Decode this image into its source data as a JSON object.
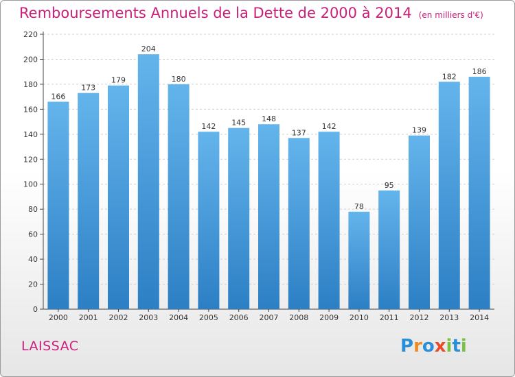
{
  "title": "Remboursements Annuels de la Dette de 2000 à 2014",
  "subtitle": "(en milliers d'€)",
  "commune": "LAISSAC",
  "logo": {
    "text": "Proxiti",
    "letters": [
      "P",
      "r",
      "o",
      "x",
      "i",
      "t",
      "i"
    ],
    "colors": [
      "#2a8fd6",
      "#f18b1f",
      "#2a8fd6",
      "#e94b2a",
      "#7ac142",
      "#2a8fd6",
      "#7ac142"
    ]
  },
  "colors": {
    "accent": "#c8207a",
    "bar_top": "#64b4ec",
    "bar_bottom": "#2c7fc4",
    "grid": "#cfcfcf"
  },
  "chart_data": {
    "type": "bar",
    "categories": [
      "2000",
      "2001",
      "2002",
      "2003",
      "2004",
      "2005",
      "2006",
      "2007",
      "2008",
      "2009",
      "2010",
      "2011",
      "2012",
      "2013",
      "2014"
    ],
    "values": [
      166,
      173,
      179,
      204,
      180,
      142,
      145,
      148,
      137,
      142,
      78,
      95,
      139,
      182,
      186
    ],
    "title": "Remboursements Annuels de la Dette de 2000 à 2014",
    "xlabel": "",
    "ylabel": "",
    "ylim": [
      0,
      220
    ],
    "yticks": [
      0,
      20,
      40,
      60,
      80,
      100,
      120,
      140,
      160,
      180,
      200,
      220
    ],
    "grid": true
  }
}
